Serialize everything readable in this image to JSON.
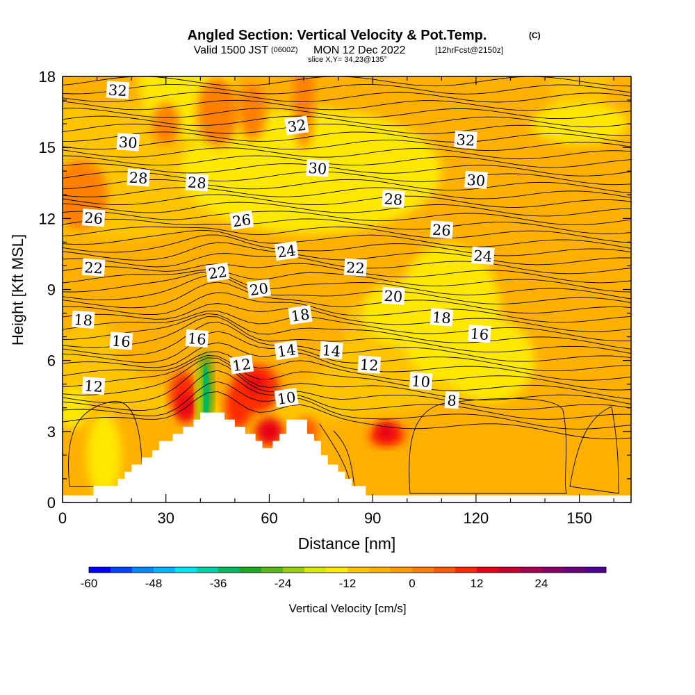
{
  "header": {
    "title": "Angled Section: Vertical Velocity & Pot.Temp.",
    "title_unit": "(C)",
    "valid_prefix": "Valid 1500 JST",
    "valid_utc": "(0600Z)",
    "valid_date": "MON 12 Dec 2022",
    "valid_fcst": "[12hrFcst@2150z]",
    "slice": "slice X,Y= 34,23@135°"
  },
  "chart_data": {
    "type": "heatmap",
    "title": "Angled Section: Vertical Velocity & Pot.Temp. (C)",
    "xlabel": "Distance [nm]",
    "ylabel": "Height [Kft MSL]",
    "xlim": [
      0,
      165
    ],
    "ylim": [
      0,
      18
    ],
    "xticks": [
      "0",
      "30",
      "60",
      "90",
      "120",
      "150"
    ],
    "yticks": [
      "0",
      "3",
      "6",
      "9",
      "12",
      "15",
      "18"
    ],
    "colorbar": {
      "label": "Vertical Velocity [cm/s]",
      "tick_labels": [
        "-60",
        "-48",
        "-36",
        "-24",
        "-12",
        "0",
        "12",
        "24"
      ],
      "colors": [
        "#0000ff",
        "#0044ff",
        "#0088ff",
        "#00b4ff",
        "#00e6f0",
        "#00d0a8",
        "#00b860",
        "#20a820",
        "#58b818",
        "#98d010",
        "#d8e800",
        "#ffe800",
        "#ffc400",
        "#ffb000",
        "#ff9a00",
        "#ff8000",
        "#ff5a00",
        "#ff2a00",
        "#e80018",
        "#c80030",
        "#a80050",
        "#880068",
        "#6c007c",
        "#500090"
      ]
    },
    "terrain_profile": [
      [
        0,
        0.3
      ],
      [
        9,
        0.3
      ],
      [
        9,
        0.7
      ],
      [
        16,
        0.7
      ],
      [
        16,
        1.0
      ],
      [
        18,
        1.0
      ],
      [
        18,
        1.3
      ],
      [
        20,
        1.3
      ],
      [
        20,
        1.6
      ],
      [
        23,
        1.6
      ],
      [
        23,
        1.9
      ],
      [
        26,
        1.9
      ],
      [
        26,
        2.2
      ],
      [
        28,
        2.2
      ],
      [
        28,
        2.6
      ],
      [
        32,
        2.6
      ],
      [
        32,
        2.9
      ],
      [
        35,
        2.9
      ],
      [
        35,
        3.2
      ],
      [
        38,
        3.2
      ],
      [
        38,
        3.5
      ],
      [
        40,
        3.5
      ],
      [
        40,
        3.8
      ],
      [
        47,
        3.8
      ],
      [
        47,
        3.5
      ],
      [
        50,
        3.5
      ],
      [
        50,
        3.2
      ],
      [
        53,
        3.2
      ],
      [
        53,
        2.9
      ],
      [
        56,
        2.9
      ],
      [
        56,
        2.6
      ],
      [
        58,
        2.6
      ],
      [
        58,
        2.3
      ],
      [
        61,
        2.3
      ],
      [
        61,
        2.6
      ],
      [
        63,
        2.6
      ],
      [
        63,
        2.9
      ],
      [
        65,
        2.9
      ],
      [
        65,
        3.5
      ],
      [
        71,
        3.5
      ],
      [
        71,
        2.9
      ],
      [
        73,
        2.9
      ],
      [
        73,
        2.6
      ],
      [
        75,
        2.6
      ],
      [
        75,
        2.0
      ],
      [
        77,
        2.0
      ],
      [
        77,
        1.6
      ],
      [
        80,
        1.6
      ],
      [
        80,
        1.3
      ],
      [
        82,
        1.3
      ],
      [
        82,
        1.0
      ],
      [
        84,
        1.0
      ],
      [
        84,
        0.7
      ],
      [
        88,
        0.7
      ],
      [
        88,
        0.3
      ],
      [
        165,
        0.3
      ]
    ],
    "pot_temp_labels": [
      {
        "text": "32",
        "x": 16,
        "y": 17.4
      },
      {
        "text": "32",
        "x": 68,
        "y": 15.9
      },
      {
        "text": "32",
        "x": 117,
        "y": 15.3
      },
      {
        "text": "30",
        "x": 19,
        "y": 15.2
      },
      {
        "text": "30",
        "x": 74,
        "y": 14.1
      },
      {
        "text": "30",
        "x": 120,
        "y": 13.6
      },
      {
        "text": "28",
        "x": 22,
        "y": 13.7
      },
      {
        "text": "28",
        "x": 39,
        "y": 13.5
      },
      {
        "text": "28",
        "x": 96,
        "y": 12.8
      },
      {
        "text": "26",
        "x": 9,
        "y": 12.0
      },
      {
        "text": "26",
        "x": 52,
        "y": 11.9
      },
      {
        "text": "26",
        "x": 110,
        "y": 11.5
      },
      {
        "text": "24",
        "x": 65,
        "y": 10.6
      },
      {
        "text": "24",
        "x": 122,
        "y": 10.4
      },
      {
        "text": "22",
        "x": 9,
        "y": 9.9
      },
      {
        "text": "22",
        "x": 45,
        "y": 9.7
      },
      {
        "text": "22",
        "x": 85,
        "y": 9.9
      },
      {
        "text": "20",
        "x": 57,
        "y": 9.0
      },
      {
        "text": "20",
        "x": 96,
        "y": 8.7
      },
      {
        "text": "18",
        "x": 6,
        "y": 7.7
      },
      {
        "text": "18",
        "x": 69,
        "y": 7.9
      },
      {
        "text": "18",
        "x": 110,
        "y": 7.8
      },
      {
        "text": "16",
        "x": 17,
        "y": 6.8
      },
      {
        "text": "16",
        "x": 39,
        "y": 6.9
      },
      {
        "text": "16",
        "x": 121,
        "y": 7.1
      },
      {
        "text": "14",
        "x": 65,
        "y": 6.4
      },
      {
        "text": "14",
        "x": 78,
        "y": 6.4
      },
      {
        "text": "12",
        "x": 9,
        "y": 4.9
      },
      {
        "text": "12",
        "x": 52,
        "y": 5.8
      },
      {
        "text": "12",
        "x": 89,
        "y": 5.8
      },
      {
        "text": "10",
        "x": 65,
        "y": 4.4
      },
      {
        "text": "10",
        "x": 104,
        "y": 5.1
      },
      {
        "text": "8",
        "x": 113,
        "y": 4.3
      }
    ],
    "grid": false
  }
}
